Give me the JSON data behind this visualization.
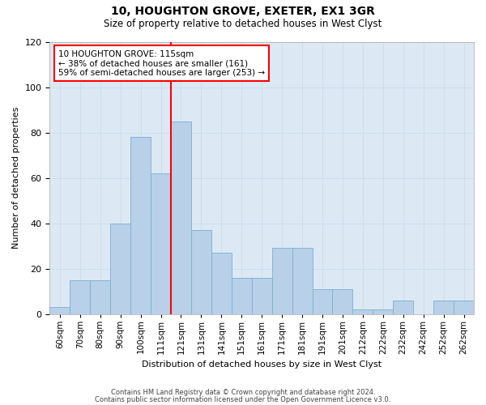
{
  "title": "10, HOUGHTON GROVE, EXETER, EX1 3GR",
  "subtitle": "Size of property relative to detached houses in West Clyst",
  "xlabel": "Distribution of detached houses by size in West Clyst",
  "ylabel": "Number of detached properties",
  "categories": [
    "60sqm",
    "70sqm",
    "80sqm",
    "90sqm",
    "100sqm",
    "111sqm",
    "121sqm",
    "131sqm",
    "141sqm",
    "151sqm",
    "161sqm",
    "171sqm",
    "181sqm",
    "191sqm",
    "201sqm",
    "212sqm",
    "222sqm",
    "232sqm",
    "242sqm",
    "252sqm",
    "262sqm"
  ],
  "bar_values": [
    3,
    15,
    15,
    40,
    78,
    62,
    85,
    37,
    27,
    16,
    16,
    29,
    29,
    11,
    11,
    2,
    2,
    6,
    0,
    6,
    6
  ],
  "bar_color": "#b8d0e8",
  "bar_edge_color": "#7aafd4",
  "ref_line_index": 5.5,
  "annotation_text": "10 HOUGHTON GROVE: 115sqm\n← 38% of detached houses are smaller (161)\n59% of semi-detached houses are larger (253) →",
  "ylim": [
    0,
    120
  ],
  "yticks": [
    0,
    20,
    40,
    60,
    80,
    100,
    120
  ],
  "grid_color": "#c8d8e8",
  "plot_background": "#dce9f5",
  "footer1": "Contains HM Land Registry data © Crown copyright and database right 2024.",
  "footer2": "Contains public sector information licensed under the Open Government Licence v3.0."
}
